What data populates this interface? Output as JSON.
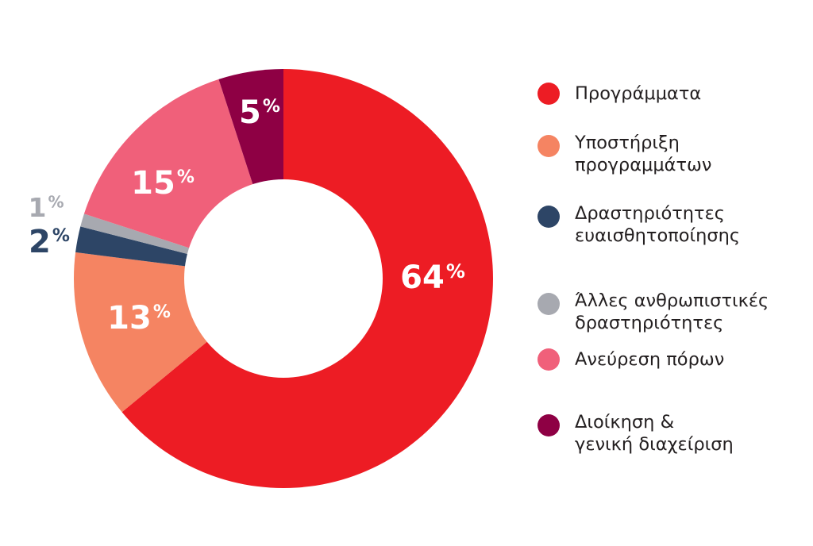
{
  "chart_data": {
    "type": "pie",
    "variant": "donut",
    "title": "",
    "categories": [
      "Προγράμματα",
      "Υποστήριξη προγραμμάτων",
      "Δραστηριότητες ευαισθητοποίησης",
      "Άλλες ανθρωπιστικές δραστηριότητες",
      "Ανεύρεση πόρων",
      "Διοίκηση & γενική διαχείριση"
    ],
    "values": [
      64,
      13,
      2,
      1,
      15,
      5
    ],
    "unit": "%",
    "legend_position": "right",
    "slices": [
      {
        "label_lines": [
          "Προγράμματα"
        ],
        "value": 64,
        "color": "#ed1c24",
        "label_color": "#ffffff",
        "label_outside": false
      },
      {
        "label_lines": [
          "Υποστήριξη",
          "προγραμμάτων"
        ],
        "value": 13,
        "color": "#f58462",
        "label_color": "#ffffff",
        "label_outside": false
      },
      {
        "label_lines": [
          "Δραστηριότητες",
          "ευαισθητοποίησης"
        ],
        "value": 2,
        "color": "#2d4566",
        "label_color": "#2d4566",
        "label_outside": true
      },
      {
        "label_lines": [
          "Άλλες ανθρωπιστικές",
          "δραστηριότητες"
        ],
        "value": 1,
        "color": "#a7a9b0",
        "label_color": "#a7a9b0",
        "label_outside": true
      },
      {
        "label_lines": [
          "Ανεύρεση πόρων"
        ],
        "value": 15,
        "color": "#f0607a",
        "label_color": "#ffffff",
        "label_outside": false
      },
      {
        "label_lines": [
          "Διοίκηση &",
          "γενική διαχείριση"
        ],
        "value": 5,
        "color": "#8e0044",
        "label_color": "#ffffff",
        "label_outside": false
      }
    ]
  }
}
